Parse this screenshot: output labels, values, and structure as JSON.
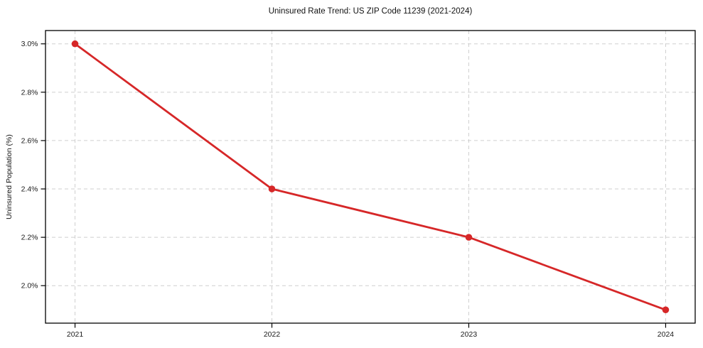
{
  "chart_data": {
    "type": "line",
    "title": "Uninsured Rate Trend: US ZIP Code 11239 (2021-2024)",
    "xlabel": "",
    "ylabel": "Uninsured Population (%)",
    "x": [
      2021,
      2022,
      2023,
      2024
    ],
    "x_tick_labels": [
      "2021",
      "2022",
      "2023",
      "2024"
    ],
    "values": [
      3.0,
      2.4,
      2.2,
      1.9
    ],
    "y_ticks": [
      2.0,
      2.2,
      2.4,
      2.6,
      2.8,
      3.0
    ],
    "y_tick_labels": [
      "2.0%",
      "2.2%",
      "2.4%",
      "2.6%",
      "2.8%",
      "3.0%"
    ],
    "xlim": [
      2020.85,
      2024.15
    ],
    "ylim": [
      1.845,
      3.055
    ],
    "grid": true,
    "grid_style": "dashed",
    "legend": "none",
    "line_color": "#d62728",
    "marker": "circle",
    "grid_color": "#cfcfcf",
    "axis_color": "#000000"
  }
}
